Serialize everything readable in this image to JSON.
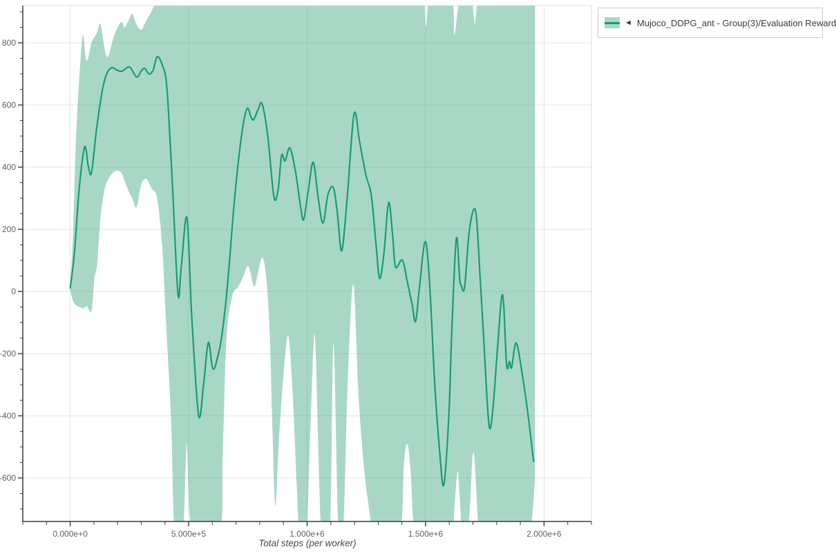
{
  "legend": {
    "marker": "◄",
    "label": "Mujoco_DDPG_ant - Group(3)/Evaluation Reward"
  },
  "colors": {
    "band": "#a8d8c5",
    "line": "#1a9c73",
    "grid": "rgba(130,130,130,0.22)",
    "axis": "#3a3a3a",
    "panel_border": "#dddddd",
    "tick_text": "#5f5f5f"
  },
  "chart_data": {
    "type": "line",
    "title": "",
    "xlabel": "Total steps (per worker)",
    "ylabel": "",
    "xlim": [
      -200000,
      2200000
    ],
    "ylim": [
      -740,
      920
    ],
    "grid": true,
    "legend_position": "top-right-outside",
    "x_ticks": [
      {
        "v": 0,
        "label": "0.000e+0"
      },
      {
        "v": 500000,
        "label": "5.000e+5"
      },
      {
        "v": 1000000,
        "label": "1.000e+6"
      },
      {
        "v": 1500000,
        "label": "1.500e+6"
      },
      {
        "v": 2000000,
        "label": "2.000e+6"
      }
    ],
    "y_ticks": [
      {
        "v": 800,
        "label": "800"
      },
      {
        "v": 600,
        "label": "600"
      },
      {
        "v": 400,
        "label": "400"
      },
      {
        "v": 200,
        "label": "200"
      },
      {
        "v": 0,
        "label": "0"
      },
      {
        "v": -200,
        "label": "-200"
      },
      {
        "v": -400,
        "label": "-400"
      },
      {
        "v": -600,
        "label": "-600"
      }
    ],
    "x_minor_step": 100000,
    "y_minor_step": 50,
    "series": [
      {
        "name": "Mujoco_DDPG_ant - Group(3)/Evaluation Reward",
        "line_color": "#1a9c73",
        "band_color": "#a8d8c5",
        "points": [
          [
            0,
            12
          ],
          [
            17500,
            120
          ],
          [
            38000,
            330
          ],
          [
            61000,
            465
          ],
          [
            76000,
            405
          ],
          [
            90000,
            382
          ],
          [
            111000,
            520
          ],
          [
            134000,
            640
          ],
          [
            154000,
            700
          ],
          [
            175000,
            720
          ],
          [
            198000,
            712
          ],
          [
            219000,
            709
          ],
          [
            251000,
            722
          ],
          [
            280000,
            690
          ],
          [
            300000,
            710
          ],
          [
            315000,
            718
          ],
          [
            332000,
            700
          ],
          [
            350000,
            712
          ],
          [
            367000,
            755
          ],
          [
            388000,
            730
          ],
          [
            408000,
            656
          ],
          [
            431000,
            350
          ],
          [
            455000,
            -8
          ],
          [
            469000,
            80
          ],
          [
            493000,
            237
          ],
          [
            513000,
            -80
          ],
          [
            542000,
            -398
          ],
          [
            563000,
            -300
          ],
          [
            583000,
            -164
          ],
          [
            603000,
            -250
          ],
          [
            627000,
            -196
          ],
          [
            644000,
            -120
          ],
          [
            665000,
            30
          ],
          [
            694000,
            300
          ],
          [
            723000,
            500
          ],
          [
            746000,
            588
          ],
          [
            764000,
            560
          ],
          [
            775000,
            553
          ],
          [
            793000,
            585
          ],
          [
            810000,
            604
          ],
          [
            834000,
            500
          ],
          [
            860000,
            304
          ],
          [
            878000,
            330
          ],
          [
            892000,
            438
          ],
          [
            907000,
            420
          ],
          [
            927000,
            462
          ],
          [
            950000,
            390
          ],
          [
            971000,
            280
          ],
          [
            985000,
            231
          ],
          [
            1006000,
            330
          ],
          [
            1026000,
            416
          ],
          [
            1047000,
            300
          ],
          [
            1067000,
            220
          ],
          [
            1088000,
            312
          ],
          [
            1111000,
            334
          ],
          [
            1128000,
            250
          ],
          [
            1146000,
            131
          ],
          [
            1169000,
            300
          ],
          [
            1198000,
            571
          ],
          [
            1222000,
            480
          ],
          [
            1248000,
            375
          ],
          [
            1271000,
            309
          ],
          [
            1291000,
            150
          ],
          [
            1306000,
            42
          ],
          [
            1324000,
            120
          ],
          [
            1344000,
            286
          ],
          [
            1361000,
            180
          ],
          [
            1373000,
            79
          ],
          [
            1402000,
            101
          ],
          [
            1423000,
            30
          ],
          [
            1443000,
            -40
          ],
          [
            1458000,
            -96
          ],
          [
            1475000,
            20
          ],
          [
            1498000,
            160
          ],
          [
            1516000,
            40
          ],
          [
            1539000,
            -300
          ],
          [
            1560000,
            -520
          ],
          [
            1577000,
            -622
          ],
          [
            1598000,
            -400
          ],
          [
            1612000,
            -100
          ],
          [
            1630000,
            171
          ],
          [
            1644000,
            40
          ],
          [
            1650000,
            20
          ],
          [
            1665000,
            14
          ],
          [
            1685000,
            198
          ],
          [
            1711000,
            260
          ],
          [
            1729000,
            60
          ],
          [
            1743000,
            -120
          ],
          [
            1767000,
            -425
          ],
          [
            1784000,
            -380
          ],
          [
            1802000,
            -200
          ],
          [
            1825000,
            -10
          ],
          [
            1842000,
            -236
          ],
          [
            1854000,
            -225
          ],
          [
            1863000,
            -245
          ],
          [
            1883000,
            -166
          ],
          [
            1910000,
            -277
          ],
          [
            1933000,
            -400
          ],
          [
            1956000,
            -547
          ]
        ],
        "band": [
          [
            0,
            5,
            25
          ],
          [
            12000,
            -30,
            190
          ],
          [
            26000,
            -45,
            520
          ],
          [
            47000,
            -52,
            780
          ],
          [
            55000,
            -55,
            822
          ],
          [
            70000,
            -48,
            742
          ],
          [
            90000,
            -62,
            800
          ],
          [
            102000,
            40,
            818
          ],
          [
            114000,
            90,
            835
          ],
          [
            128000,
            240,
            860
          ],
          [
            146000,
            330,
            778
          ],
          [
            160000,
            360,
            756
          ],
          [
            184000,
            385,
            820
          ],
          [
            204000,
            388,
            855
          ],
          [
            219000,
            378,
            867
          ],
          [
            230000,
            355,
            849
          ],
          [
            251000,
            315,
            880
          ],
          [
            262000,
            300,
            893
          ],
          [
            280000,
            271,
            860
          ],
          [
            300000,
            345,
            842
          ],
          [
            321000,
            362,
            872
          ],
          [
            344000,
            331,
            902
          ],
          [
            367000,
            300,
            940
          ],
          [
            388000,
            150,
            940
          ],
          [
            402000,
            -60,
            940
          ],
          [
            426000,
            -420,
            940
          ],
          [
            440000,
            -760,
            940
          ],
          [
            475000,
            -780,
            940
          ],
          [
            487000,
            -560,
            940
          ],
          [
            493000,
            -496,
            940
          ],
          [
            504000,
            -720,
            940
          ],
          [
            525000,
            -780,
            940
          ],
          [
            630000,
            -780,
            940
          ],
          [
            644000,
            -520,
            940
          ],
          [
            659000,
            -160,
            940
          ],
          [
            682000,
            -20,
            940
          ],
          [
            709000,
            15,
            940
          ],
          [
            729000,
            45,
            940
          ],
          [
            752000,
            82,
            940
          ],
          [
            776000,
            16,
            940
          ],
          [
            793000,
            60,
            940
          ],
          [
            811000,
            109,
            940
          ],
          [
            828000,
            40,
            940
          ],
          [
            843000,
            -150,
            940
          ],
          [
            854000,
            -450,
            940
          ],
          [
            866000,
            -690,
            940
          ],
          [
            881000,
            -480,
            940
          ],
          [
            901000,
            -260,
            940
          ],
          [
            921000,
            -144,
            940
          ],
          [
            939000,
            -330,
            940
          ],
          [
            956000,
            -620,
            940
          ],
          [
            968000,
            -770,
            940
          ],
          [
            997000,
            -770,
            940
          ],
          [
            1015000,
            -420,
            940
          ],
          [
            1032000,
            -138,
            940
          ],
          [
            1047000,
            -500,
            940
          ],
          [
            1061000,
            -770,
            940
          ],
          [
            1096000,
            -770,
            940
          ],
          [
            1111000,
            -165,
            940
          ],
          [
            1131000,
            -740,
            940
          ],
          [
            1152000,
            -770,
            940
          ],
          [
            1172000,
            -280,
            940
          ],
          [
            1195000,
            23,
            940
          ],
          [
            1216000,
            -320,
            940
          ],
          [
            1239000,
            -560,
            940
          ],
          [
            1265000,
            -720,
            940
          ],
          [
            1277000,
            -780,
            940
          ],
          [
            1388000,
            -780,
            940
          ],
          [
            1408000,
            -560,
            940
          ],
          [
            1423000,
            -490,
            940
          ],
          [
            1437000,
            -580,
            940
          ],
          [
            1452000,
            -760,
            940
          ],
          [
            1487000,
            -780,
            940
          ],
          [
            1496000,
            -780,
            920
          ],
          [
            1501000,
            -780,
            849
          ],
          [
            1510000,
            -780,
            920
          ],
          [
            1519000,
            -780,
            940
          ],
          [
            1609000,
            -780,
            940
          ],
          [
            1621000,
            -700,
            827
          ],
          [
            1635000,
            -580,
            900
          ],
          [
            1644000,
            -660,
            940
          ],
          [
            1653000,
            -760,
            940
          ],
          [
            1671000,
            -780,
            940
          ],
          [
            1685000,
            -720,
            940
          ],
          [
            1697000,
            -545,
            930
          ],
          [
            1703000,
            -520,
            890
          ],
          [
            1708000,
            -560,
            860
          ],
          [
            1714000,
            -640,
            900
          ],
          [
            1723000,
            -760,
            940
          ],
          [
            1738000,
            -780,
            940
          ],
          [
            1918000,
            -780,
            940
          ],
          [
            1942000,
            -760,
            940
          ],
          [
            1953000,
            -700,
            940
          ],
          [
            1962000,
            -600,
            940
          ]
        ]
      }
    ]
  }
}
